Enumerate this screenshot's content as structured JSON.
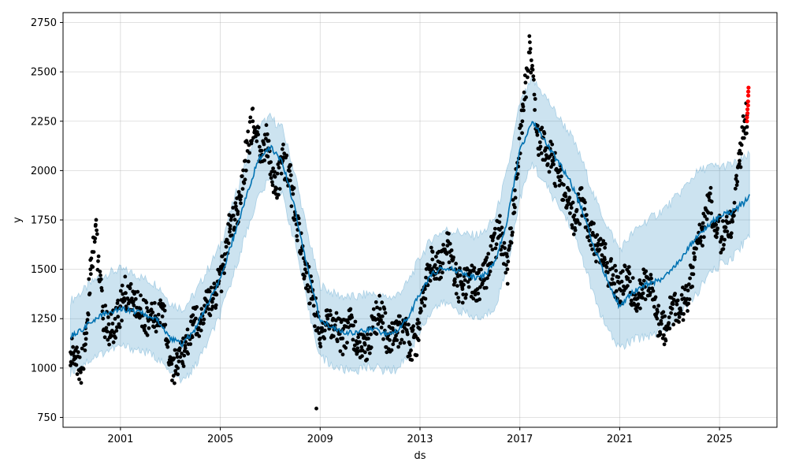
{
  "chart_data": {
    "type": "scatter",
    "title": "",
    "xlabel": "ds",
    "ylabel": "y",
    "xlim": [
      1998.7,
      2027.3
    ],
    "ylim": [
      700,
      2800
    ],
    "grid": true,
    "x_ticks": [
      2001,
      2005,
      2009,
      2013,
      2017,
      2021,
      2025
    ],
    "x_tick_labels": [
      "2001",
      "2005",
      "2009",
      "2013",
      "2017",
      "2021",
      "2025"
    ],
    "y_ticks": [
      750,
      1000,
      1250,
      1500,
      1750,
      2000,
      2250,
      2500,
      2750
    ],
    "y_tick_labels": [
      "750",
      "1000",
      "1250",
      "1500",
      "1750",
      "2000",
      "2250",
      "2500",
      "2750"
    ],
    "colors": {
      "observed": "#000000",
      "forecast": "#0072B2",
      "interval": "#0072B2",
      "highlight": "#ff0000"
    },
    "series": [
      {
        "kind": "forecast",
        "x": [
          1999.0,
          1999.5,
          2000.0,
          2000.5,
          2001.0,
          2001.5,
          2002.0,
          2002.5,
          2003.0,
          2003.5,
          2004.0,
          2004.5,
          2005.0,
          2005.5,
          2006.0,
          2006.5,
          2007.0,
          2007.5,
          2008.0,
          2008.5,
          2009.0,
          2009.5,
          2010.0,
          2010.5,
          2011.0,
          2011.5,
          2012.0,
          2012.5,
          2013.0,
          2013.5,
          2014.0,
          2014.5,
          2015.0,
          2015.5,
          2016.0,
          2016.5,
          2017.0,
          2017.5,
          2018.0,
          2018.5,
          2019.0,
          2019.5,
          2020.0,
          2020.5,
          2021.0,
          2021.5,
          2022.0,
          2022.5,
          2023.0,
          2023.5,
          2024.0,
          2024.5,
          2025.0,
          2025.5,
          2026.0,
          2026.2
        ],
        "y": [
          1160,
          1200,
          1250,
          1280,
          1300,
          1290,
          1270,
          1240,
          1150,
          1120,
          1200,
          1320,
          1450,
          1650,
          1850,
          2050,
          2120,
          2040,
          1800,
          1500,
          1250,
          1200,
          1180,
          1180,
          1200,
          1180,
          1180,
          1250,
          1380,
          1480,
          1510,
          1490,
          1460,
          1460,
          1530,
          1750,
          2100,
          2250,
          2150,
          2050,
          1950,
          1800,
          1600,
          1450,
          1310,
          1380,
          1420,
          1440,
          1480,
          1560,
          1650,
          1720,
          1770,
          1790,
          1840,
          1870
        ]
      },
      {
        "kind": "interval",
        "x": [
          1999.0,
          1999.5,
          2000.0,
          2000.5,
          2001.0,
          2001.5,
          2002.0,
          2002.5,
          2003.0,
          2003.5,
          2004.0,
          2004.5,
          2005.0,
          2005.5,
          2006.0,
          2006.5,
          2007.0,
          2007.5,
          2008.0,
          2008.5,
          2009.0,
          2009.5,
          2010.0,
          2010.5,
          2011.0,
          2011.5,
          2012.0,
          2012.5,
          2013.0,
          2013.5,
          2014.0,
          2014.5,
          2015.0,
          2015.5,
          2016.0,
          2016.5,
          2017.0,
          2017.5,
          2018.0,
          2018.5,
          2019.0,
          2019.5,
          2020.0,
          2020.5,
          2021.0,
          2021.5,
          2022.0,
          2022.5,
          2023.0,
          2023.5,
          2024.0,
          2024.5,
          2025.0,
          2025.5,
          2026.0,
          2026.2
        ],
        "upper": [
          1340,
          1390,
          1450,
          1480,
          1500,
          1480,
          1450,
          1420,
          1330,
          1300,
          1380,
          1500,
          1620,
          1830,
          2030,
          2220,
          2270,
          2210,
          1980,
          1680,
          1420,
          1380,
          1360,
          1360,
          1380,
          1360,
          1360,
          1430,
          1560,
          1660,
          1700,
          1690,
          1670,
          1680,
          1760,
          2000,
          2340,
          2460,
          2380,
          2280,
          2190,
          2050,
          1860,
          1720,
          1600,
          1680,
          1740,
          1780,
          1830,
          1900,
          1980,
          2020,
          2020,
          2030,
          2060,
          2080
        ],
        "lower": [
          980,
          1020,
          1060,
          1090,
          1110,
          1100,
          1080,
          1050,
          970,
          930,
          1010,
          1130,
          1270,
          1460,
          1670,
          1860,
          1960,
          1870,
          1630,
          1310,
          1060,
          1010,
          990,
          990,
          1010,
          990,
          990,
          1060,
          1190,
          1300,
          1330,
          1300,
          1260,
          1250,
          1310,
          1510,
          1860,
          2040,
          1930,
          1830,
          1730,
          1560,
          1350,
          1190,
          1100,
          1140,
          1160,
          1180,
          1210,
          1280,
          1360,
          1460,
          1520,
          1560,
          1640,
          1680
        ]
      },
      {
        "kind": "observed",
        "x": [
          1999.0,
          1999.2,
          1999.4,
          1999.6,
          1999.8,
          2000.0,
          2000.3,
          2000.6,
          2000.9,
          2001.2,
          2001.5,
          2001.8,
          2002.1,
          2002.4,
          2002.7,
          2003.0,
          2003.3,
          2003.6,
          2003.9,
          2004.2,
          2004.5,
          2004.8,
          2005.1,
          2005.4,
          2005.7,
          2006.0,
          2006.3,
          2006.6,
          2006.9,
          2007.2,
          2007.5,
          2007.8,
          2008.1,
          2008.4,
          2008.7,
          2009.0,
          2009.3,
          2009.6,
          2009.9,
          2010.2,
          2010.5,
          2010.8,
          2011.1,
          2011.4,
          2011.7,
          2012.0,
          2012.3,
          2012.6,
          2012.9,
          2013.2,
          2013.5,
          2013.8,
          2014.1,
          2014.4,
          2014.7,
          2015.0,
          2015.3,
          2015.6,
          2015.9,
          2016.2,
          2016.5,
          2016.8,
          2017.1,
          2017.4,
          2017.7,
          2018.0,
          2018.3,
          2018.6,
          2018.9,
          2019.2,
          2019.5,
          2019.8,
          2020.1,
          2020.4,
          2020.7,
          2021.0,
          2021.3,
          2021.6,
          2021.9,
          2022.2,
          2022.5,
          2022.8,
          2023.1,
          2023.4,
          2023.7,
          2024.0,
          2024.3,
          2024.6,
          2024.9,
          2025.2,
          2025.5,
          2025.8,
          2026.0,
          2026.1
        ],
        "y": [
          1080,
          1050,
          990,
          1120,
          1500,
          1720,
          1250,
          1180,
          1260,
          1380,
          1330,
          1300,
          1250,
          1240,
          1300,
          1020,
          1000,
          1100,
          1220,
          1250,
          1320,
          1380,
          1500,
          1720,
          1780,
          2050,
          2250,
          2100,
          2150,
          1900,
          2050,
          1950,
          1700,
          1500,
          1350,
          1150,
          1250,
          1200,
          1150,
          1250,
          1100,
          1080,
          1200,
          1300,
          1150,
          1150,
          1220,
          1120,
          1150,
          1400,
          1550,
          1500,
          1620,
          1450,
          1400,
          1450,
          1400,
          1450,
          1600,
          1700,
          1500,
          1900,
          2250,
          2650,
          2180,
          2100,
          2050,
          1950,
          1850,
          1750,
          1850,
          1700,
          1600,
          1550,
          1450,
          1400,
          1450,
          1350,
          1400,
          1450,
          1250,
          1200,
          1300,
          1300,
          1350,
          1550,
          1700,
          1850,
          1700,
          1650,
          1750,
          2050,
          2250,
          2280
        ]
      },
      {
        "kind": "highlight",
        "x": [
          2026.1,
          2026.1,
          2026.12,
          2026.12,
          2026.14,
          2026.14,
          2026.15,
          2026.15,
          2026.16
        ],
        "y": [
          2250,
          2270,
          2290,
          2310,
          2330,
          2350,
          2380,
          2400,
          2420
        ]
      }
    ]
  }
}
